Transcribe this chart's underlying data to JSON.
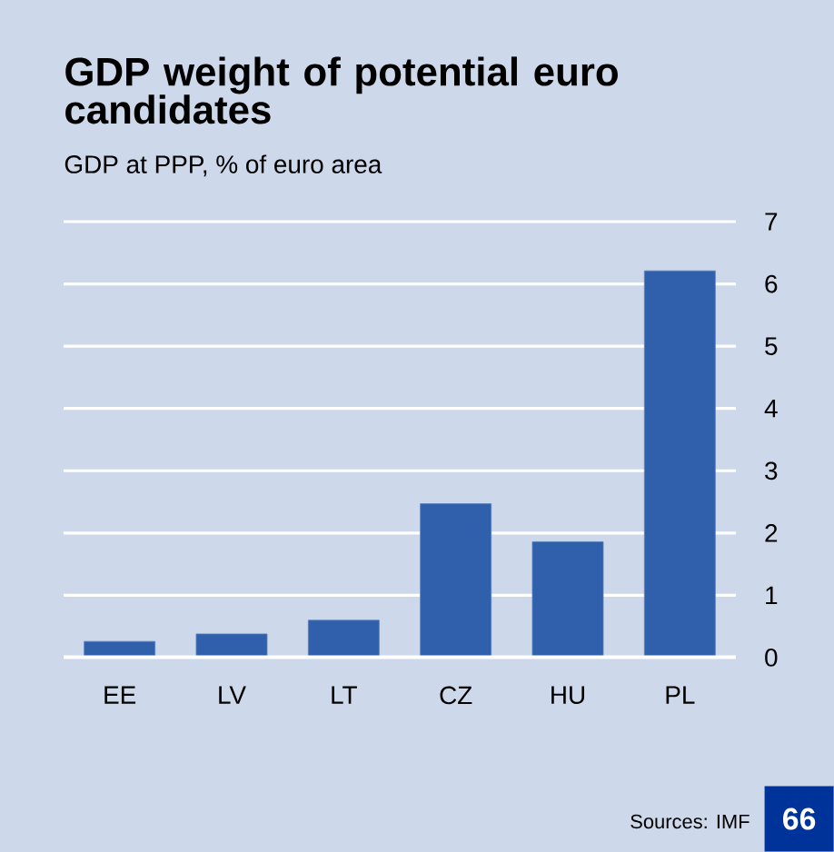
{
  "chart_data": {
    "type": "bar",
    "title": "GDP weight of potential euro candidates",
    "subtitle": "GDP at PPP, % of euro area",
    "categories": [
      "EE",
      "LV",
      "LT",
      "CZ",
      "HU",
      "PL"
    ],
    "values": [
      0.26,
      0.38,
      0.6,
      2.47,
      1.86,
      6.21
    ],
    "color": "#3060ac",
    "ylim": [
      0,
      7
    ],
    "yticks": [
      0,
      1,
      2,
      3,
      4,
      5,
      6,
      7
    ],
    "grid": "y",
    "annotations": [
      "Sources: IMF",
      "66"
    ]
  }
}
